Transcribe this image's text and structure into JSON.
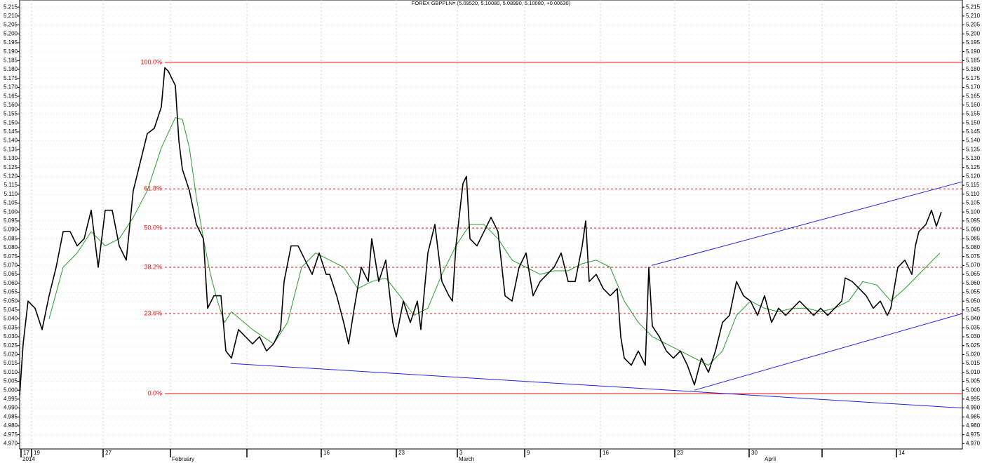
{
  "chart_data": {
    "type": "line",
    "title": "FOREX GBPPLN= (5.09520, 5.10080, 5.08990, 5.10080, +0.00630)",
    "xlim": [
      28,
      1372
    ],
    "ylim": [
      4.967,
      5.219
    ],
    "grid": true,
    "yticks": [
      {
        "value": 4.97,
        "label": "4.970"
      },
      4.975,
      {
        "value": 4.98,
        "label": "4.980"
      },
      4.985,
      {
        "value": 4.99,
        "label": "4.990"
      },
      4.995,
      {
        "value": 5,
        "label": "5.000"
      },
      5.005,
      {
        "value": 5.01,
        "label": "5.010"
      },
      5.015,
      {
        "value": 5.02,
        "label": "5.020"
      },
      5.025,
      {
        "value": 5.03,
        "label": "5.030"
      },
      5.035,
      {
        "value": 5.04,
        "label": "5.040"
      },
      5.045,
      {
        "value": 5.05,
        "label": "5.050"
      },
      5.055,
      {
        "value": 5.06,
        "label": "5.060"
      },
      5.065,
      {
        "value": 5.07,
        "label": "5.070"
      },
      5.075,
      {
        "value": 5.08,
        "label": "5.080"
      },
      5.085,
      {
        "value": 5.09,
        "label": "5.090"
      },
      5.095,
      {
        "value": 5.1,
        "label": "5.100"
      },
      5.105,
      {
        "value": 5.11,
        "label": "5.110"
      },
      5.115,
      {
        "value": 5.12,
        "label": "5.120"
      },
      5.125,
      {
        "value": 5.13,
        "label": "5.130"
      },
      5.135,
      {
        "value": 5.14,
        "label": "5.140"
      },
      5.145,
      {
        "value": 5.15,
        "label": "5.150"
      },
      5.155,
      {
        "value": 5.16,
        "label": "5.160"
      },
      5.165,
      {
        "value": 5.17,
        "label": "5.170"
      },
      5.175,
      {
        "value": 5.18,
        "label": "5.180"
      },
      5.185,
      {
        "value": 5.19,
        "label": "5.190"
      },
      5.195,
      {
        "value": 5.2,
        "label": "5.200"
      },
      5.205,
      {
        "value": 5.21,
        "label": "5.210"
      },
      5.215
    ],
    "xticks": [
      {
        "value": 30,
        "label": "17"
      },
      {
        "value": 45,
        "label": "19"
      },
      {
        "value": 147,
        "label": "27"
      },
      {
        "value": 458,
        "label": "16"
      },
      {
        "value": 565,
        "label": "23"
      },
      {
        "value": 652,
        "label": "3"
      },
      {
        "value": 748,
        "label": "9"
      },
      {
        "value": 856,
        "label": "16"
      },
      {
        "value": 962,
        "label": "23"
      },
      {
        "value": 1068,
        "label": "30"
      },
      {
        "value": 1278,
        "label": "14"
      }
    ],
    "xticks_unlabeled": [
      243,
      352,
      1172
    ],
    "month_labels": [
      {
        "value": 30,
        "label": "2014"
      },
      {
        "value": 243,
        "label": "February"
      },
      {
        "value": 652,
        "label": "March"
      },
      {
        "value": 1088,
        "label": "April"
      }
    ],
    "series": [
      {
        "color": "#000000",
        "x": [
          28,
          33,
          40,
          50,
          60,
          70,
          80,
          90,
          100,
          110,
          120,
          130,
          140,
          150,
          160,
          170,
          180,
          190,
          200,
          210,
          220,
          230,
          235,
          240,
          250,
          255,
          260,
          270,
          280,
          290,
          296,
          305,
          315,
          322,
          330,
          340,
          350,
          360,
          370,
          380,
          390,
          400,
          405,
          415,
          425,
          435,
          445,
          455,
          465,
          470,
          480,
          490,
          497,
          505,
          515,
          525,
          530,
          540,
          550,
          560,
          565,
          575,
          585,
          595,
          600,
          610,
          620,
          630,
          640,
          645,
          650,
          660,
          665,
          670,
          680,
          690,
          700,
          710,
          720,
          730,
          740,
          750,
          760,
          770,
          780,
          790,
          800,
          810,
          820,
          830,
          835,
          840,
          850,
          860,
          870,
          880,
          885,
          890,
          900,
          910,
          920,
          925,
          930,
          940,
          950,
          960,
          970,
          980,
          990,
          1000,
          1010,
          1020,
          1030,
          1040,
          1050,
          1060,
          1070,
          1080,
          1090,
          1100,
          1110,
          1120,
          1130,
          1140,
          1150,
          1160,
          1170,
          1180,
          1190,
          1200,
          1205,
          1215,
          1225,
          1235,
          1245,
          1255,
          1265,
          1270,
          1280,
          1290,
          1300,
          1305,
          1310,
          1320,
          1328,
          1335,
          1342
        ],
        "values": [
          4.997,
          5.026,
          5.05,
          5.046,
          5.034,
          5.053,
          5.069,
          5.089,
          5.089,
          5.081,
          5.085,
          5.101,
          5.069,
          5.101,
          5.101,
          5.081,
          5.073,
          5.112,
          5.128,
          5.144,
          5.147,
          5.159,
          5.181,
          5.179,
          5.171,
          5.14,
          5.124,
          5.112,
          5.093,
          5.085,
          5.046,
          5.053,
          5.053,
          5.022,
          5.018,
          5.034,
          5.03,
          5.026,
          5.03,
          5.022,
          5.026,
          5.034,
          5.061,
          5.081,
          5.081,
          5.073,
          5.065,
          5.077,
          5.065,
          5.065,
          5.053,
          5.038,
          5.026,
          5.046,
          5.069,
          5.061,
          5.085,
          5.061,
          5.073,
          5.038,
          5.03,
          5.05,
          5.038,
          5.05,
          5.034,
          5.077,
          5.093,
          5.061,
          5.053,
          5.05,
          5.081,
          5.116,
          5.12,
          5.085,
          5.081,
          5.089,
          5.097,
          5.089,
          5.053,
          5.05,
          5.069,
          5.077,
          5.053,
          5.061,
          5.065,
          5.069,
          5.077,
          5.061,
          5.061,
          5.081,
          5.095,
          5.061,
          5.065,
          5.057,
          5.053,
          5.057,
          5.03,
          5.018,
          5.014,
          5.022,
          5.014,
          5.069,
          5.036,
          5.03,
          5.022,
          5.018,
          5.022,
          5.014,
          5.003,
          5.018,
          5.01,
          5.022,
          5.038,
          5.042,
          5.061,
          5.053,
          5.05,
          5.042,
          5.053,
          5.038,
          5.046,
          5.042,
          5.046,
          5.05,
          5.046,
          5.042,
          5.046,
          5.042,
          5.046,
          5.05,
          5.063,
          5.061,
          5.057,
          5.053,
          5.046,
          5.05,
          5.042,
          5.046,
          5.069,
          5.073,
          5.065,
          5.081,
          5.089,
          5.093,
          5.101,
          5.092,
          5.1
        ]
      },
      {
        "color": "#2a9a2a",
        "x": [
          70,
          90,
          110,
          130,
          150,
          170,
          190,
          210,
          230,
          250,
          260,
          270,
          280,
          290,
          300,
          310,
          320,
          330,
          360,
          390,
          410,
          430,
          450,
          470,
          490,
          510,
          530,
          550,
          570,
          590,
          610,
          630,
          650,
          670,
          690,
          710,
          730,
          750,
          770,
          790,
          810,
          830,
          850,
          870,
          890,
          910,
          930,
          950,
          970,
          990,
          1010,
          1030,
          1050,
          1070,
          1090,
          1110,
          1130,
          1150,
          1170,
          1190,
          1210,
          1230,
          1250,
          1270,
          1290,
          1310,
          1330,
          1340
        ],
        "values": [
          5.04,
          5.069,
          5.077,
          5.089,
          5.081,
          5.085,
          5.097,
          5.112,
          5.136,
          5.153,
          5.152,
          5.136,
          5.108,
          5.085,
          5.065,
          5.05,
          5.038,
          5.044,
          5.034,
          5.026,
          5.038,
          5.069,
          5.077,
          5.073,
          5.069,
          5.057,
          5.061,
          5.063,
          5.053,
          5.042,
          5.046,
          5.065,
          5.081,
          5.093,
          5.093,
          5.085,
          5.073,
          5.069,
          5.065,
          5.067,
          5.067,
          5.071,
          5.073,
          5.069,
          5.05,
          5.038,
          5.03,
          5.026,
          5.022,
          5.018,
          5.014,
          5.022,
          5.042,
          5.05,
          5.046,
          5.044,
          5.046,
          5.046,
          5.044,
          5.046,
          5.05,
          5.061,
          5.059,
          5.05,
          5.057,
          5.065,
          5.073,
          5.077
        ]
      }
    ],
    "fib_color": "#ff0000",
    "fib_x": [
      235,
      1372
    ],
    "fib_levels": [
      {
        "value": 5.184,
        "label": "100.0%"
      },
      {
        "value": 5.113,
        "label": "61.8%"
      },
      {
        "value": 5.091,
        "label": "50.0%"
      },
      {
        "value": 5.069,
        "label": "38.2%"
      },
      {
        "value": 5.043,
        "label": "23.6%"
      },
      {
        "value": 4.998,
        "label": "0.0%"
      }
    ],
    "trend_color": "#2020e0",
    "trendlines": [
      {
        "x": [
          329,
          1372
        ],
        "values": [
          5.015,
          4.99
        ]
      },
      {
        "x": [
          929,
          1372
        ],
        "values": [
          5.07,
          5.117
        ]
      },
      {
        "x": [
          990,
          1372
        ],
        "values": [
          5.0,
          5.043
        ]
      }
    ]
  }
}
